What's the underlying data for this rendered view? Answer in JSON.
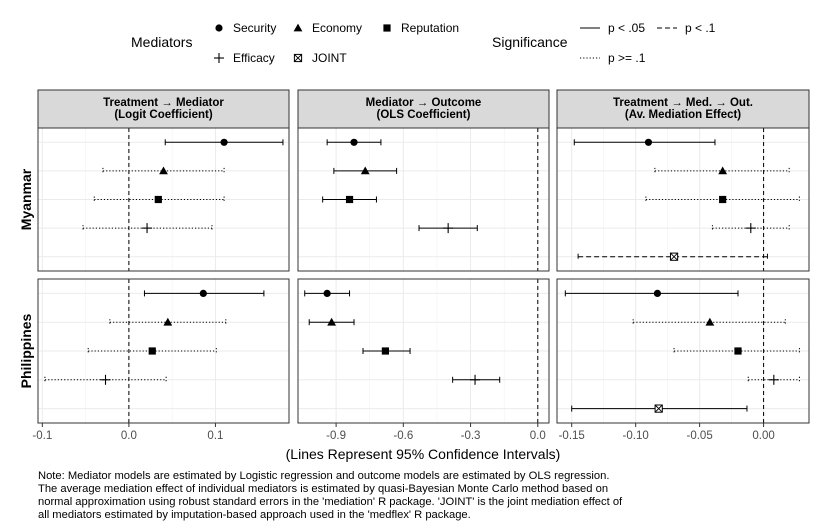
{
  "legend": {
    "mediators_title": "Mediators",
    "mediators": [
      {
        "name": "Security",
        "shape": "circle"
      },
      {
        "name": "Economy",
        "shape": "triangle"
      },
      {
        "name": "Reputation",
        "shape": "square"
      },
      {
        "name": "Efficacy",
        "shape": "plus"
      },
      {
        "name": "JOINT",
        "shape": "boxx"
      }
    ],
    "significance_title": "Significance",
    "significance": [
      {
        "name": "p < .05",
        "style": "solid"
      },
      {
        "name": "p < .1",
        "style": "dashed"
      },
      {
        "name": "p >= .1",
        "style": "dotted"
      }
    ]
  },
  "xlabel": "(Lines Represent 95% Confidence Intervals)",
  "note": "Note: Mediator models are estimated by Logistic regression and outcome models are estimated by OLS regression.\nThe average mediation effect of individual mediators is estimated by quasi-Bayesian Monte Carlo method based on\nnormal approximation using robust standard errors in the 'mediation' R package. 'JOINT' is the joint mediation effect of\nall mediators estimated by imputation-based approach used in the 'medflex' R package.",
  "chart_data": {
    "type": "scatter",
    "subtype": "faceted dot-and-whisker (coefficient plot)",
    "rows": [
      "Myanmar",
      "Philippines"
    ],
    "columns": [
      {
        "title": "Treatment → Mediator\n(Logit Coefficient)",
        "xlim": [
          -0.105,
          0.185
        ],
        "ticks": [
          -0.1,
          0.0,
          0.1
        ],
        "tick_labels": [
          "-0.1",
          "0.0",
          "0.1"
        ]
      },
      {
        "title": "Mediator → Outcome\n(OLS Coefficient)",
        "xlim": [
          -1.07,
          0.05
        ],
        "ticks": [
          -0.9,
          -0.6,
          -0.3,
          0.0
        ],
        "tick_labels": [
          "-0.9",
          "-0.6",
          "-0.3",
          "0.0"
        ]
      },
      {
        "title": "Treatment → Med. → Out.\n(Av. Mediation Effect)",
        "xlim": [
          -0.1615,
          0.0355
        ],
        "ticks": [
          -0.15,
          -0.1,
          -0.05,
          0.0
        ],
        "tick_labels": [
          "-0.15",
          "-0.10",
          "-0.05",
          "0.00"
        ]
      }
    ],
    "mediator_order": [
      "Security",
      "Economy",
      "Reputation",
      "Efficacy",
      "JOINT"
    ],
    "panels": [
      {
        "row": "Myanmar",
        "column": 0,
        "points": [
          {
            "mediator": "Security",
            "est": 0.11,
            "lo": 0.042,
            "hi": 0.178,
            "sig": "p < .05"
          },
          {
            "mediator": "Economy",
            "est": 0.04,
            "lo": -0.03,
            "hi": 0.11,
            "sig": "p >= .1"
          },
          {
            "mediator": "Reputation",
            "est": 0.034,
            "lo": -0.04,
            "hi": 0.11,
            "sig": "p >= .1"
          },
          {
            "mediator": "Efficacy",
            "est": 0.021,
            "lo": -0.053,
            "hi": 0.096,
            "sig": "p >= .1"
          }
        ]
      },
      {
        "row": "Myanmar",
        "column": 1,
        "points": [
          {
            "mediator": "Security",
            "est": -0.82,
            "lo": -0.94,
            "hi": -0.7,
            "sig": "p < .05"
          },
          {
            "mediator": "Economy",
            "est": -0.77,
            "lo": -0.91,
            "hi": -0.63,
            "sig": "p < .05"
          },
          {
            "mediator": "Reputation",
            "est": -0.84,
            "lo": -0.96,
            "hi": -0.72,
            "sig": "p < .05"
          },
          {
            "mediator": "Efficacy",
            "est": -0.4,
            "lo": -0.53,
            "hi": -0.27,
            "sig": "p < .05"
          }
        ]
      },
      {
        "row": "Myanmar",
        "column": 2,
        "points": [
          {
            "mediator": "Security",
            "est": -0.09,
            "lo": -0.148,
            "hi": -0.038,
            "sig": "p < .05"
          },
          {
            "mediator": "Economy",
            "est": -0.032,
            "lo": -0.085,
            "hi": 0.02,
            "sig": "p >= .1"
          },
          {
            "mediator": "Reputation",
            "est": -0.032,
            "lo": -0.092,
            "hi": 0.028,
            "sig": "p >= .1"
          },
          {
            "mediator": "Efficacy",
            "est": -0.01,
            "lo": -0.04,
            "hi": 0.02,
            "sig": "p >= .1"
          },
          {
            "mediator": "JOINT",
            "est": -0.07,
            "lo": -0.145,
            "hi": 0.003,
            "sig": "p < .1"
          }
        ]
      },
      {
        "row": "Philippines",
        "column": 0,
        "points": [
          {
            "mediator": "Security",
            "est": 0.086,
            "lo": 0.018,
            "hi": 0.156,
            "sig": "p < .05"
          },
          {
            "mediator": "Economy",
            "est": 0.045,
            "lo": -0.022,
            "hi": 0.112,
            "sig": "p >= .1"
          },
          {
            "mediator": "Reputation",
            "est": 0.027,
            "lo": -0.047,
            "hi": 0.101,
            "sig": "p >= .1"
          },
          {
            "mediator": "Efficacy",
            "est": -0.027,
            "lo": -0.097,
            "hi": 0.043,
            "sig": "p >= .1"
          }
        ]
      },
      {
        "row": "Philippines",
        "column": 1,
        "points": [
          {
            "mediator": "Security",
            "est": -0.94,
            "lo": -1.04,
            "hi": -0.84,
            "sig": "p < .05"
          },
          {
            "mediator": "Economy",
            "est": -0.92,
            "lo": -1.02,
            "hi": -0.82,
            "sig": "p < .05"
          },
          {
            "mediator": "Reputation",
            "est": -0.68,
            "lo": -0.78,
            "hi": -0.57,
            "sig": "p < .05"
          },
          {
            "mediator": "Efficacy",
            "est": -0.28,
            "lo": -0.38,
            "hi": -0.17,
            "sig": "p < .05"
          }
        ]
      },
      {
        "row": "Philippines",
        "column": 2,
        "points": [
          {
            "mediator": "Security",
            "est": -0.083,
            "lo": -0.155,
            "hi": -0.02,
            "sig": "p < .05"
          },
          {
            "mediator": "Economy",
            "est": -0.042,
            "lo": -0.102,
            "hi": 0.017,
            "sig": "p >= .1"
          },
          {
            "mediator": "Reputation",
            "est": -0.02,
            "lo": -0.07,
            "hi": 0.028,
            "sig": "p >= .1"
          },
          {
            "mediator": "Efficacy",
            "est": 0.008,
            "lo": -0.012,
            "hi": 0.028,
            "sig": "p >= .1"
          },
          {
            "mediator": "JOINT",
            "est": -0.082,
            "lo": -0.15,
            "hi": -0.013,
            "sig": "p < .05"
          }
        ]
      }
    ],
    "reference_line": {
      "x": 0,
      "style": "dashed"
    },
    "legend_position": "top",
    "grid": true
  }
}
